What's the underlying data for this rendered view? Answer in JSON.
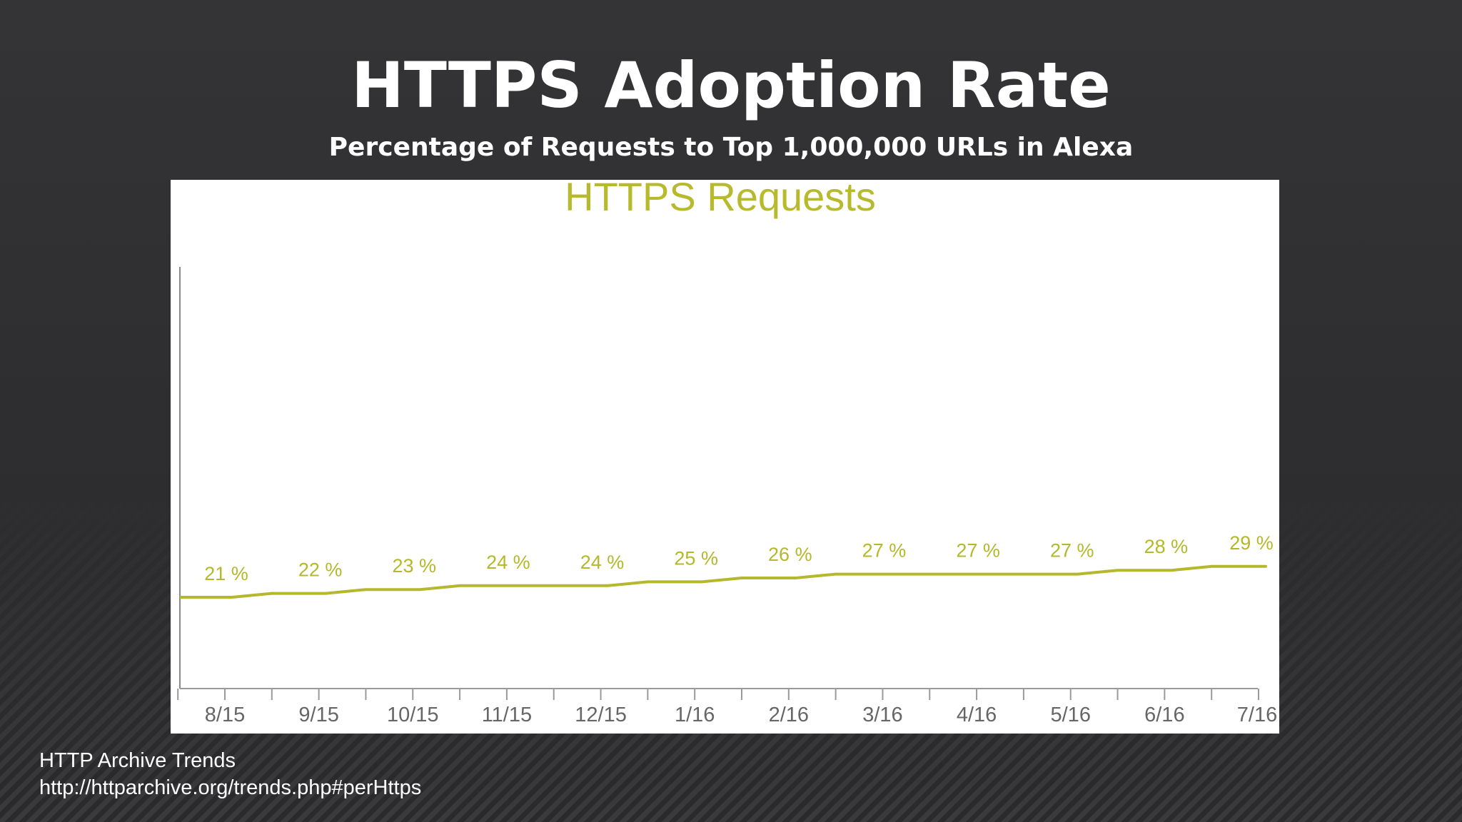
{
  "slide": {
    "title": "HTTPS Adoption Rate",
    "subtitle": "Percentage of Requests to Top 1,000,000 URLs in Alexa"
  },
  "source": {
    "name": "HTTP Archive Trends",
    "url": "http://httparchive.org/trends.php#perHttps"
  },
  "colors": {
    "background": "#2f2f31",
    "series": "#b5b82a",
    "chart_title": "#b7ba2c",
    "axis": "#9a9a9a",
    "tick_label": "#666666"
  },
  "chart_data": {
    "type": "line",
    "title": "HTTPS Requests",
    "xlabel": "",
    "ylabel": "",
    "ylim": [
      0,
      100
    ],
    "categories": [
      "8/15",
      "9/15",
      "10/15",
      "11/15",
      "12/15",
      "1/16",
      "2/16",
      "3/16",
      "4/16",
      "5/16",
      "6/16",
      "7/16"
    ],
    "series": [
      {
        "values": [
          21,
          22,
          23,
          24,
          24,
          25,
          26,
          27,
          27,
          27,
          28,
          29
        ],
        "labels": [
          "21 %",
          "22 %",
          "23 %",
          "24 %",
          "24 %",
          "25 %",
          "26 %",
          "27 %",
          "27 %",
          "27 %",
          "28 %",
          "29 %"
        ]
      }
    ],
    "grid": false,
    "legend": "none"
  }
}
